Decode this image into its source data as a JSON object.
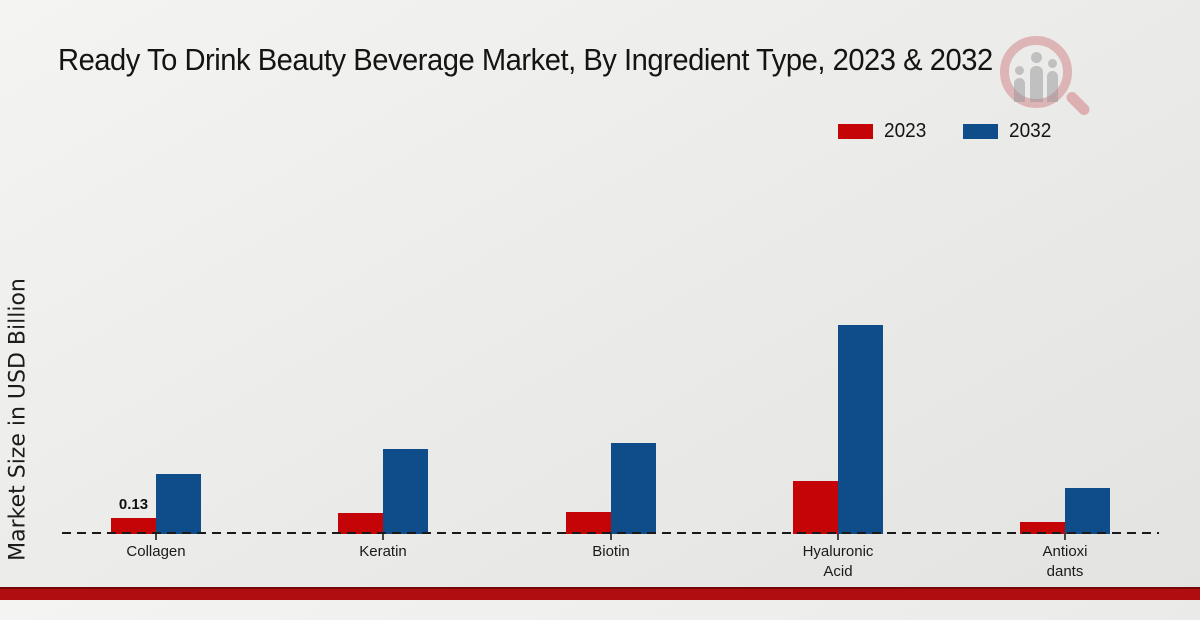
{
  "title": "Ready To Drink Beauty Beverage Market, By Ingredient Type, 2023 & 2032",
  "y_axis_label": "Market Size in USD Billion",
  "legend": {
    "position": "top-right",
    "items": [
      {
        "label": "2023",
        "color": "#c50408"
      },
      {
        "label": "2032",
        "color": "#0e4c8a"
      }
    ]
  },
  "chart_data": {
    "type": "bar",
    "title": "Ready To Drink Beauty Beverage Market, By Ingredient Type, 2023 & 2032",
    "categories": [
      "Collagen",
      "Keratin",
      "Biotin",
      "Hyaluronic Acid",
      "Antioxidants"
    ],
    "series": [
      {
        "name": "2023",
        "color": "#c50408",
        "values": [
          0.13,
          0.17,
          0.18,
          0.43,
          0.1
        ]
      },
      {
        "name": "2032",
        "color": "#0e4c8a",
        "values": [
          0.49,
          0.69,
          0.74,
          1.7,
          0.37
        ]
      }
    ],
    "xlabel": "",
    "ylabel": "Market Size in USD Billion",
    "ylim": [
      0,
      1.9
    ],
    "grid": false,
    "legend_position": "top-right",
    "annotations": [
      {
        "category": "Collagen",
        "series": "2023",
        "text": "0.13"
      }
    ]
  },
  "category_display_labels": [
    "Collagen",
    "Keratin",
    "Biotin",
    "Hyaluronic\nAcid",
    "Antioxi\ndants"
  ],
  "colors": {
    "bar_2023": "#c50408",
    "bar_2032": "#0e4c8a",
    "baseline": "#1a1a1a",
    "bottom_strip": "#b00d10",
    "background_top": "#f4f4f2",
    "background_bottom": "#e3e3e1"
  },
  "watermark": {
    "name": "market-research-magnifier-logo"
  }
}
